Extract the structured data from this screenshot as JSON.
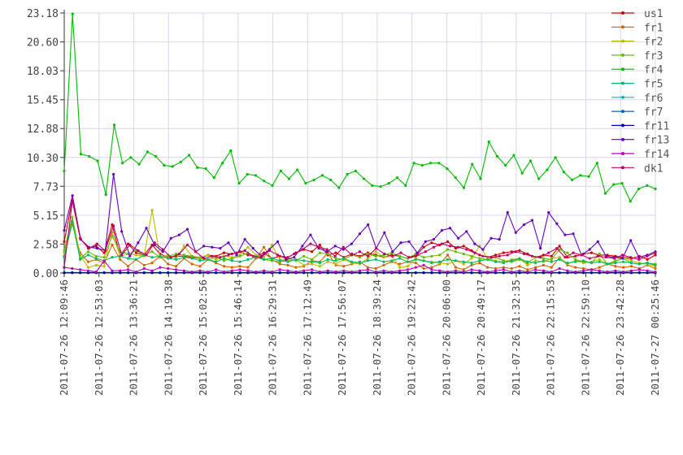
{
  "chart_data": {
    "type": "line",
    "title": "",
    "xlabel": "",
    "ylabel": "",
    "ylim": [
      0,
      23.18
    ],
    "y_ticks": [
      "0.00",
      "2.58",
      "5.15",
      "7.73",
      "10.30",
      "12.88",
      "15.45",
      "18.03",
      "20.60",
      "23.18"
    ],
    "x_ticks": [
      "2011-07-26 12:09:46",
      "2011-07-26 12:53:03",
      "2011-07-26 13:36:21",
      "2011-07-26 14:19:38",
      "2011-07-26 15:02:56",
      "2011-07-26 15:46:14",
      "2011-07-26 16:29:31",
      "2011-07-26 17:12:49",
      "2011-07-26 17:56:07",
      "2011-07-26 18:39:24",
      "2011-07-26 19:22:42",
      "2011-07-26 20:06:00",
      "2011-07-26 20:49:17",
      "2011-07-26 21:32:35",
      "2011-07-26 22:15:53",
      "2011-07-26 22:59:10",
      "2011-07-26 23:42:28",
      "2011-07-27 00:25:46"
    ],
    "grid": true,
    "legend_position": "right",
    "series": [
      {
        "name": "us1",
        "color": "#cc0000",
        "values": [
          2.8,
          6.5,
          3.1,
          2.2,
          2.4,
          1.8,
          4.3,
          1.5,
          2.6,
          1.8,
          1.6,
          2.5,
          1.7,
          1.4,
          1.5,
          1.5,
          1.4,
          1.3,
          1.6,
          1.5,
          1.8,
          1.7,
          1.9,
          1.6,
          1.5,
          1.8,
          1.3,
          1.5,
          1.4,
          1.8,
          2.1,
          1.9,
          2.5,
          1.6,
          1.8,
          1.4,
          1.7,
          1.5,
          1.8,
          1.6,
          1.4,
          1.6,
          1.5,
          1.3,
          1.5,
          2.3,
          2.7,
          2.5,
          2.8,
          2.2,
          2.4,
          2.0,
          1.6,
          1.4,
          1.6,
          1.8,
          1.9,
          2.0,
          1.7,
          1.4,
          1.6,
          1.5,
          2.4,
          1.4,
          1.5,
          1.7,
          1.8,
          1.6,
          1.6,
          1.5,
          1.4,
          1.3,
          1.5,
          1.2,
          1.6
        ]
      },
      {
        "name": "fr1",
        "color": "#cc6600",
        "values": [
          1.5,
          4.4,
          1.8,
          1.0,
          1.2,
          0.9,
          2.5,
          1.2,
          0.6,
          1.2,
          0.7,
          0.9,
          1.5,
          0.8,
          0.6,
          1.3,
          0.8,
          0.6,
          1.2,
          0.9,
          0.6,
          0.5,
          0.6,
          0.5,
          1.3,
          2.3,
          1.2,
          0.8,
          0.7,
          0.5,
          0.6,
          1.1,
          1.0,
          1.8,
          0.7,
          0.6,
          0.8,
          1.0,
          0.5,
          0.4,
          0.7,
          1.0,
          0.8,
          1.0,
          0.9,
          0.4,
          0.5,
          0.8,
          1.6,
          0.5,
          0.3,
          0.7,
          0.9,
          0.5,
          0.4,
          0.5,
          0.4,
          0.6,
          0.3,
          0.5,
          0.7,
          0.5,
          1.4,
          0.7,
          0.5,
          0.4,
          0.3,
          0.5,
          0.8,
          0.6,
          0.5,
          0.6,
          0.4,
          0.7,
          0.4
        ]
      },
      {
        "name": "fr2",
        "color": "#bbbb00",
        "values": [
          1.8,
          5.0,
          1.6,
          0.5,
          0.7,
          0.6,
          3.6,
          1.5,
          1.7,
          1.6,
          1.5,
          5.6,
          1.4,
          1.6,
          1.3,
          2.4,
          1.5,
          1.4,
          1.6,
          1.2,
          1.5,
          1.4,
          1.6,
          2.3,
          1.6,
          1.4,
          2.5,
          1.2,
          1.1,
          1.2,
          0.7,
          0.8,
          0.6,
          1.0,
          0.8,
          1.2,
          0.9,
          0.8,
          1.3,
          1.9,
          1.4,
          1.5,
          0.5,
          0.6,
          1.3,
          1.1,
          1.0,
          0.9,
          0.8,
          1.1,
          0.8,
          1.3,
          2.4,
          1.3,
          1.1,
          1.0,
          1.2,
          1.3,
          0.7,
          1.1,
          1.0,
          1.3,
          1.4,
          0.8,
          1.1,
          0.9,
          1.0,
          1.2,
          0.8,
          1.0,
          1.4,
          1.1,
          0.9,
          0.8,
          0.6
        ]
      },
      {
        "name": "fr3",
        "color": "#66bb00",
        "values": [
          2.0,
          4.9,
          1.3,
          1.9,
          1.5,
          1.4,
          3.3,
          1.9,
          1.7,
          2.0,
          1.6,
          1.9,
          1.4,
          1.5,
          1.7,
          1.6,
          1.5,
          1.3,
          1.2,
          1.4,
          1.1,
          1.3,
          1.5,
          1.8,
          1.4,
          1.2,
          1.1,
          1.0,
          1.3,
          1.1,
          1.5,
          1.2,
          1.8,
          1.7,
          1.3,
          1.2,
          1.6,
          1.4,
          1.7,
          1.5,
          1.6,
          1.8,
          1.5,
          1.3,
          1.7,
          1.4,
          1.5,
          1.6,
          2.1,
          1.9,
          1.7,
          1.5,
          1.3,
          1.2,
          1.4,
          1.1,
          1.0,
          1.2,
          0.9,
          1.4,
          1.3,
          1.2,
          2.1,
          1.8,
          1.2,
          1.0,
          0.9,
          1.7,
          0.8,
          1.1,
          1.3,
          0.9,
          0.8,
          0.9,
          0.8
        ]
      },
      {
        "name": "fr4",
        "color": "#00bb00",
        "values": [
          9.1,
          23.1,
          10.6,
          10.4,
          10.0,
          7.0,
          13.2,
          9.8,
          10.3,
          9.7,
          10.8,
          10.4,
          9.6,
          9.5,
          9.9,
          10.5,
          9.4,
          9.3,
          8.5,
          9.8,
          10.9,
          8.0,
          8.8,
          8.7,
          8.2,
          7.8,
          9.1,
          8.4,
          9.2,
          8.0,
          8.3,
          8.7,
          8.3,
          7.6,
          8.8,
          9.1,
          8.4,
          7.8,
          7.7,
          8.0,
          8.5,
          7.8,
          9.8,
          9.6,
          9.8,
          9.8,
          9.3,
          8.5,
          7.6,
          9.7,
          8.4,
          11.7,
          10.4,
          9.6,
          10.5,
          8.9,
          10.0,
          8.4,
          9.2,
          10.3,
          9.0,
          8.3,
          8.7,
          8.6,
          9.8,
          7.1,
          7.9,
          8.0,
          6.4,
          7.5,
          7.8,
          7.5
        ]
      },
      {
        "name": "fr5",
        "color": "#00bb66",
        "values": [
          1.4,
          4.6,
          1.2,
          1.6,
          1.3,
          1.1,
          1.4,
          1.5,
          1.3,
          1.2,
          1.6,
          1.4,
          1.5,
          1.3,
          1.2,
          1.4,
          1.3,
          1.1,
          1.2,
          1.0,
          1.3,
          1.1,
          1.0,
          1.2,
          1.4,
          1.2,
          1.3,
          1.1,
          1.0,
          1.2,
          1.1,
          1.0,
          0.9,
          1.2,
          1.1,
          1.3,
          1.0,
          0.9,
          1.1,
          1.2,
          1.0,
          1.1,
          1.3,
          1.0,
          1.2,
          1.1,
          0.9,
          1.0,
          1.2,
          1.1,
          1.0,
          0.9,
          1.1,
          1.2,
          1.0,
          0.9,
          1.1,
          1.3,
          1.0,
          0.9,
          1.1,
          1.0,
          1.2,
          0.9,
          1.0,
          1.1,
          0.9,
          1.0,
          0.8,
          0.9,
          1.0,
          0.9,
          0.8,
          0.9,
          0.7
        ]
      },
      {
        "name": "fr6",
        "color": "#00bbbb",
        "values": [
          0.05,
          0.05,
          0.05,
          0.05,
          0.05,
          0.05,
          0.05,
          0.05,
          0.05,
          0.05,
          0.05,
          0.05,
          0.05,
          0.05,
          0.05,
          0.05,
          0.05,
          0.05,
          0.05,
          0.05,
          0.05,
          0.05,
          0.05,
          0.05,
          0.05,
          0.05,
          0.05,
          0.05,
          0.05,
          0.05,
          0.05,
          0.05,
          0.05,
          0.05,
          0.05,
          0.05,
          0.05,
          0.05,
          0.05,
          0.05,
          0.05,
          0.05,
          0.05,
          0.05,
          0.05,
          0.05,
          0.05,
          0.05,
          0.05,
          0.05,
          0.05,
          0.05,
          0.05,
          0.05,
          0.05,
          0.05,
          0.05,
          0.05,
          0.05,
          0.05,
          0.05,
          0.05,
          0.05,
          0.05,
          0.05,
          0.05,
          0.05,
          0.05,
          0.05,
          0.05,
          0.05,
          0.05,
          0.05,
          0.05,
          0.05
        ]
      },
      {
        "name": "fr7",
        "color": "#0066bb",
        "values": [
          0.03,
          0.03,
          0.03,
          0.03,
          0.03,
          0.03,
          0.03,
          0.03,
          0.03,
          0.03,
          0.03,
          0.03,
          0.03,
          0.03,
          0.03,
          0.03,
          0.03,
          0.03,
          0.03,
          0.03,
          0.03,
          0.03,
          0.03,
          0.03,
          0.03,
          0.03,
          0.03,
          0.03,
          0.03,
          0.03,
          0.03,
          0.03,
          0.03,
          0.03,
          0.03,
          0.03,
          0.03,
          0.03,
          0.03,
          0.03,
          0.03,
          0.03,
          0.03,
          0.03,
          0.03,
          0.03,
          0.03,
          0.03,
          0.03,
          0.03,
          0.03,
          0.03,
          0.03,
          0.03,
          0.03,
          0.03,
          0.03,
          0.03,
          0.03,
          0.03,
          0.03,
          0.03,
          0.03,
          0.03,
          0.03,
          0.03,
          0.03,
          0.03,
          0.03,
          0.03,
          0.03,
          0.03,
          0.03,
          0.03,
          0.03
        ]
      },
      {
        "name": "fr11",
        "color": "#0000aa",
        "values": [
          0.02,
          0.02,
          0.02,
          0.02,
          0.02,
          0.02,
          0.02,
          0.02,
          0.02,
          0.02,
          0.02,
          0.02,
          0.02,
          0.02,
          0.02,
          0.02,
          0.02,
          0.02,
          0.02,
          0.02,
          0.02,
          0.02,
          0.02,
          0.02,
          0.02,
          0.02,
          0.02,
          0.02,
          0.02,
          0.02,
          0.02,
          0.02,
          0.02,
          0.02,
          0.02,
          0.02,
          0.02,
          0.02,
          0.02,
          0.02,
          0.02,
          0.02,
          0.02,
          0.02,
          0.02,
          0.02,
          0.02,
          0.02,
          0.02,
          0.02,
          0.02,
          0.02,
          0.02,
          0.02,
          0.02,
          0.02,
          0.02,
          0.02,
          0.02,
          0.02,
          0.02,
          0.02,
          0.02,
          0.02,
          0.02,
          0.02,
          0.02,
          0.02,
          0.02,
          0.02,
          0.02,
          0.02,
          0.02,
          0.02,
          0.02
        ]
      },
      {
        "name": "fr13",
        "color": "#6600bb",
        "values": [
          3.8,
          6.9,
          3.0,
          2.3,
          2.2,
          2.0,
          8.8,
          3.7,
          1.5,
          2.7,
          4.0,
          2.5,
          1.9,
          3.1,
          3.4,
          3.9,
          1.9,
          2.4,
          2.3,
          2.2,
          2.7,
          1.6,
          3.0,
          2.2,
          1.5,
          2.1,
          2.8,
          1.2,
          1.4,
          2.4,
          3.4,
          2.2,
          1.9,
          2.4,
          2.1,
          2.6,
          3.5,
          4.3,
          2.2,
          3.6,
          1.9,
          2.7,
          2.8,
          1.8,
          2.8,
          3.0,
          3.8,
          4.0,
          3.1,
          3.7,
          2.6,
          2.1,
          3.1,
          3.0,
          5.4,
          3.6,
          4.3,
          4.7,
          2.2,
          5.4,
          4.4,
          3.4,
          3.5,
          1.6,
          2.1,
          2.8,
          1.5,
          1.4,
          1.3,
          2.9,
          1.4,
          1.6,
          1.9
        ]
      },
      {
        "name": "fr14",
        "color": "#bb00bb",
        "values": [
          0.5,
          0.4,
          0.3,
          0.2,
          0.1,
          1.1,
          0.2,
          0.2,
          0.3,
          0.1,
          0.4,
          0.2,
          0.5,
          0.4,
          0.3,
          0.2,
          0.1,
          0.2,
          0.1,
          0.3,
          0.1,
          0.2,
          0.3,
          0.2,
          0.1,
          0.2,
          0.1,
          0.3,
          0.2,
          0.1,
          0.2,
          0.3,
          0.1,
          0.2,
          0.1,
          0.2,
          0.1,
          0.2,
          0.3,
          0.1,
          0.2,
          0.1,
          0.2,
          0.3,
          0.5,
          0.7,
          0.3,
          0.2,
          0.1,
          0.2,
          0.1,
          0.3,
          0.2,
          0.1,
          0.2,
          0.3,
          0.1,
          0.2,
          0.1,
          0.3,
          0.2,
          0.1,
          0.4,
          0.2,
          0.1,
          0.2,
          0.3,
          0.2,
          0.1,
          0.2,
          0.1,
          0.2,
          0.3,
          0.2,
          0.1
        ]
      },
      {
        "name": "dk1",
        "color": "#bb0066",
        "values": [
          0.5,
          6.5,
          3.0,
          2.2,
          2.6,
          2.0,
          4.2,
          1.6,
          2.5,
          2.0,
          1.6,
          2.7,
          2.1,
          1.4,
          1.7,
          2.5,
          1.9,
          1.3,
          1.5,
          1.4,
          1.6,
          1.8,
          2.0,
          1.5,
          1.4,
          2.0,
          1.6,
          1.3,
          1.7,
          2.1,
          2.6,
          2.3,
          2.1,
          1.5,
          2.3,
          1.6,
          1.9,
          1.5,
          2.2,
          1.7,
          1.5,
          1.8,
          1.4,
          1.6,
          1.9,
          2.3,
          2.6,
          2.4,
          2.3,
          2.1,
          1.8,
          1.5,
          1.4,
          1.5,
          1.6,
          1.9,
          1.7,
          1.5,
          1.4,
          1.8,
          2.2,
          1.4,
          1.8,
          1.6,
          1.3,
          1.5,
          1.4,
          1.3,
          1.6,
          1.4,
          1.2,
          1.5,
          1.8
        ]
      }
    ]
  }
}
